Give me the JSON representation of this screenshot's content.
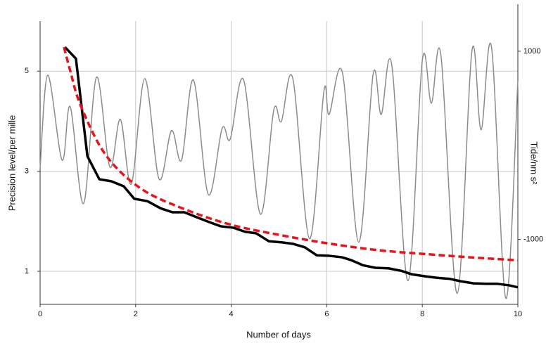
{
  "chart_data": {
    "type": "line",
    "x_label": "Number of days",
    "y_label": "Precision level/per mille",
    "y2_label": "Tide/nm s²",
    "xlim": [
      0,
      10
    ],
    "xticks": [
      0,
      2,
      4,
      6,
      8,
      10
    ],
    "ylim": [
      0.34,
      6.0
    ],
    "yticks": [
      1,
      3,
      5
    ],
    "y2lim": [
      -1690,
      1320
    ],
    "y2ticks": [
      1000,
      -1000
    ],
    "grid": true,
    "series": [
      {
        "color": "#8c8c8c",
        "axis": "y2",
        "smooth": true,
        "width": 1.5,
        "x": [
          0,
          0.16,
          0.46,
          0.63,
          0.91,
          1.18,
          1.46,
          1.68,
          1.91,
          2.19,
          2.49,
          2.75,
          2.96,
          3.21,
          3.52,
          3.81,
          3.98,
          4.26,
          4.61,
          4.89,
          5.05,
          5.29,
          5.64,
          5.94,
          6.05,
          6.33,
          6.67,
          6.97,
          7.14,
          7.36,
          7.7,
          8.0,
          8.19,
          8.39,
          8.73,
          9.04,
          9.23,
          9.45,
          9.75,
          10.0
        ],
        "values": [
          -246,
          746,
          -157,
          410,
          -619,
          724,
          -231,
          276,
          -410,
          709,
          -358,
          157,
          -157,
          694,
          -522,
          179,
          67,
          694,
          -731,
          373,
          254,
          709,
          -993,
          575,
          328,
          769,
          -1030,
          754,
          328,
          858,
          -1440,
          903,
          448,
          955,
          -1575,
          1007,
          164,
          1037,
          -1627,
          687
        ]
      },
      {
        "color": "#000000",
        "smooth": false,
        "width": 3.5,
        "x": [
          0.52,
          0.75,
          0.99,
          1.24,
          1.49,
          1.75,
          1.97,
          2.25,
          2.52,
          2.77,
          3.02,
          3.28,
          3.55,
          3.78,
          4.05,
          4.29,
          4.52,
          4.79,
          5.05,
          5.29,
          5.54,
          5.79,
          6.05,
          6.32,
          6.52,
          6.76,
          7.02,
          7.29,
          7.56,
          7.78,
          8.06,
          8.31,
          8.57,
          8.81,
          9.07,
          9.34,
          9.57,
          9.82,
          10.0
        ],
        "values": [
          5.48,
          5.25,
          3.3,
          2.84,
          2.8,
          2.7,
          2.45,
          2.4,
          2.26,
          2.18,
          2.18,
          2.08,
          1.98,
          1.9,
          1.87,
          1.79,
          1.76,
          1.6,
          1.58,
          1.55,
          1.48,
          1.32,
          1.31,
          1.28,
          1.22,
          1.12,
          1.07,
          1.06,
          1.01,
          0.94,
          0.9,
          0.87,
          0.85,
          0.8,
          0.76,
          0.75,
          0.75,
          0.72,
          0.68
        ]
      },
      {
        "color": "#e8141a",
        "smooth": true,
        "dashed": true,
        "width": 3.5,
        "x": [
          0.5,
          0.63,
          0.85,
          1.37,
          2.1,
          3.0,
          4.0,
          5.05,
          6.08,
          7.1,
          8.0,
          9.0,
          10.0
        ],
        "values": [
          5.48,
          5.01,
          4.31,
          3.33,
          2.66,
          2.25,
          1.93,
          1.72,
          1.55,
          1.42,
          1.35,
          1.28,
          1.22
        ]
      }
    ]
  }
}
